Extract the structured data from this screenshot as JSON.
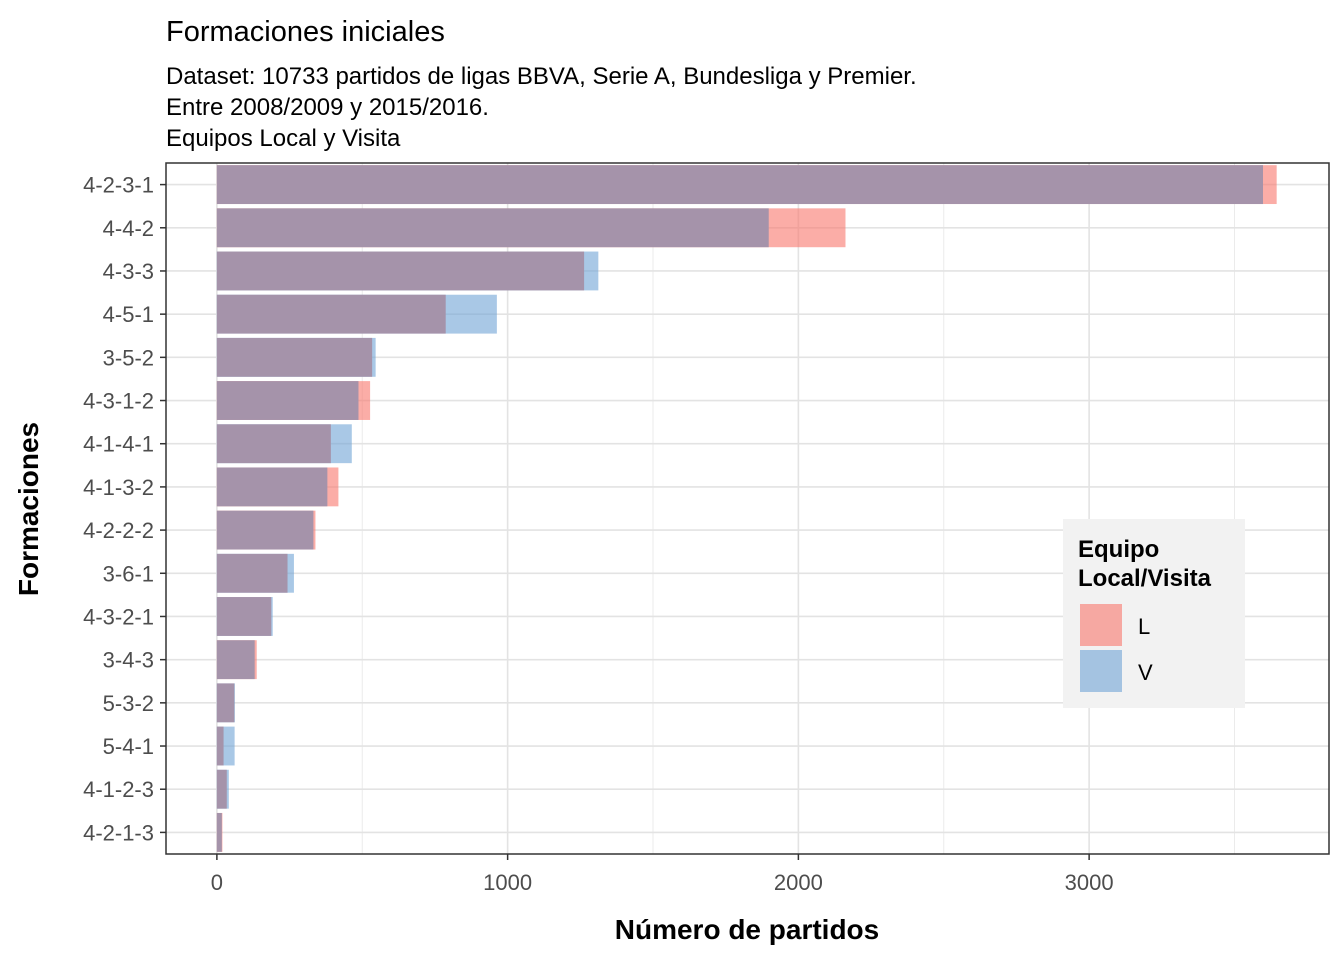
{
  "chart_data": {
    "type": "bar",
    "orientation": "horizontal",
    "title": "Formaciones iniciales",
    "subtitle_lines": [
      "Dataset: 10733 partidos de ligas BBVA, Serie A, Bundesliga y Premier.",
      "Entre 2008/2009 y 2015/2016.",
      "Equipos Local y Visita"
    ],
    "xlabel": "Número de partidos",
    "ylabel": "Formaciones",
    "xlim": [
      -175,
      3825
    ],
    "xticks": [
      0,
      1000,
      2000,
      3000
    ],
    "categories": [
      "4-2-3-1",
      "4-4-2",
      "4-3-3",
      "4-5-1",
      "3-5-2",
      "4-3-1-2",
      "4-1-4-1",
      "4-1-3-2",
      "4-2-2-2",
      "3-6-1",
      "4-3-2-1",
      "3-4-3",
      "5-3-2",
      "5-4-1",
      "4-1-2-3",
      "4-2-1-3"
    ],
    "series": [
      {
        "name": "L",
        "color": "#F8766D",
        "values": [
          3645,
          2162,
          1263,
          787,
          534,
          527,
          392,
          418,
          339,
          243,
          187,
          137,
          60,
          23,
          34,
          19
        ]
      },
      {
        "name": "V",
        "color": "#6FA3D6",
        "values": [
          3598,
          1898,
          1312,
          963,
          546,
          487,
          464,
          380,
          332,
          265,
          192,
          130,
          62,
          61,
          41,
          17
        ]
      }
    ],
    "overlap_color": "#A593AA",
    "grid": true,
    "legend": {
      "title_lines": [
        "Equipo",
        "Local/Visita"
      ],
      "position": "right-inside"
    }
  }
}
